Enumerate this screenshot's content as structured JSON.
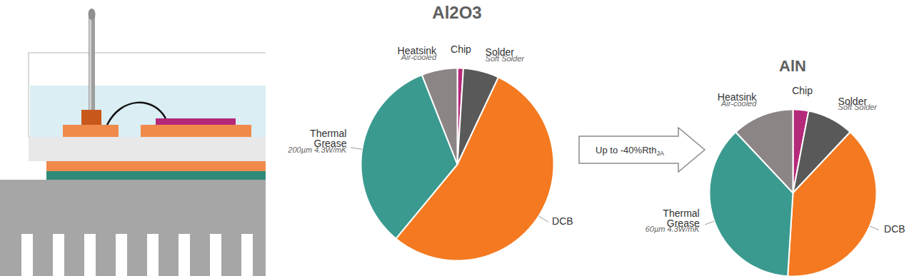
{
  "chart_data": [
    {
      "type": "pie",
      "title": "Al2O3",
      "categories": [
        "Chip",
        "Solder",
        "DCB",
        "Thermal Grease",
        "Heatsink"
      ],
      "values": [
        1,
        6,
        54,
        33,
        6
      ],
      "colors": [
        "#b5297a",
        "#595959",
        "#f47920",
        "#3a9a8f",
        "#8c8585"
      ],
      "annotations": {
        "Solder": "Soft Solder",
        "Thermal Grease": "200µm 4.3W/mK",
        "Heatsink": "Air-cooled"
      }
    },
    {
      "type": "pie",
      "title": "AlN",
      "categories": [
        "Chip",
        "Solder",
        "DCB",
        "Thermal Grease",
        "Heatsink"
      ],
      "values": [
        3,
        9,
        39,
        37,
        12
      ],
      "colors": [
        "#b5297a",
        "#595959",
        "#f47920",
        "#3a9a8f",
        "#8c8585"
      ],
      "annotations": {
        "Solder": "Soft Solder",
        "Thermal Grease": "60µm 4.3W/mK",
        "Heatsink": "Air-cooled"
      }
    }
  ],
  "arrow_label": {
    "text": "Up to -40%Rth",
    "subscript": "JA"
  }
}
